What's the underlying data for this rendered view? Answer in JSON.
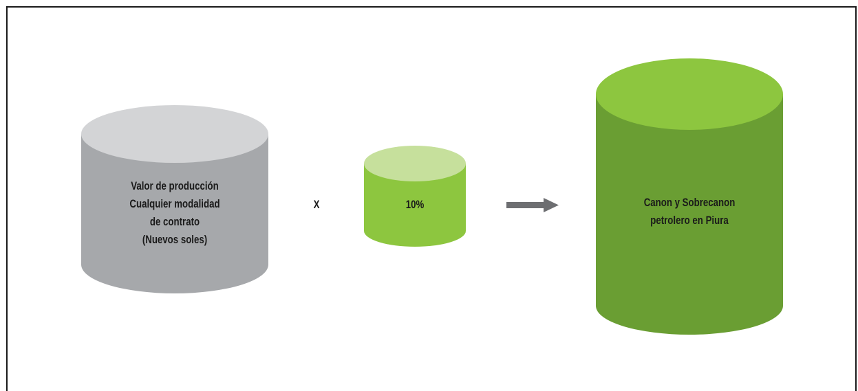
{
  "colors": {
    "gray_body": "#a6a8ab",
    "gray_top": "#d3d4d6",
    "light_green_body": "#8dc63f",
    "light_green_top": "#c6e09c",
    "dark_green_body": "#6a9e33",
    "dark_green_top": "#8dc63f",
    "arrow": "#6d6e71",
    "text": "#1a1a1a"
  },
  "cylinders": {
    "production_value": {
      "lines": [
        "Valor de producción",
        "Cualquier modalidad",
        "de contrato",
        "(Nuevos soles)"
      ]
    },
    "rate": {
      "lines": [
        "10%"
      ]
    },
    "result": {
      "lines": [
        "Canon y Sobrecanon",
        "petrolero en Piura"
      ]
    }
  },
  "operators": {
    "multiply": "X"
  }
}
